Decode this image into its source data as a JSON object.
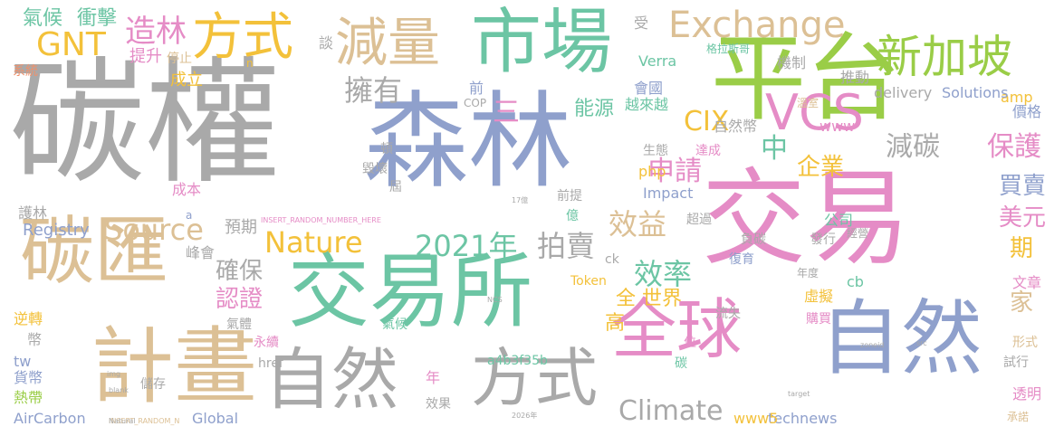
{
  "palette": {
    "gray": "#a9a9a9",
    "blue": "#8fa0cc",
    "green": "#6cc5a4",
    "pink": "#e58cc6",
    "tan": "#dcc095",
    "yellow": "#f3c13a",
    "lime": "#9acd47",
    "orange": "#f0916b"
  },
  "words": [
    {
      "text": "碳權",
      "size": 150,
      "color": "gray",
      "v": false
    },
    {
      "text": "森林",
      "size": 115,
      "color": "blue",
      "v": false
    },
    {
      "text": "交易",
      "size": 115,
      "color": "pink",
      "v": false
    },
    {
      "text": "平台",
      "size": 105,
      "color": "lime",
      "v": false
    },
    {
      "text": "市場",
      "size": 78,
      "color": "green",
      "v": false
    },
    {
      "text": "交易所",
      "size": 90,
      "color": "green",
      "v": false
    },
    {
      "text": "計畫",
      "size": 92,
      "color": "tan",
      "v": false
    },
    {
      "text": "碳匯",
      "size": 82,
      "color": "tan",
      "v": false
    },
    {
      "text": "自然",
      "size": 90,
      "color": "blue",
      "v": false
    },
    {
      "text": "全球",
      "size": 72,
      "color": "pink",
      "v": false
    },
    {
      "text": "自然",
      "size": 74,
      "color": "gray",
      "v": false
    },
    {
      "text": "方式",
      "size": 70,
      "color": "gray",
      "v": false
    },
    {
      "text": "減量",
      "size": 58,
      "color": "tan",
      "v": false
    },
    {
      "text": "方式",
      "size": 56,
      "color": "yellow",
      "v": false
    },
    {
      "text": "新加坡",
      "size": 50,
      "color": "lime",
      "v": false
    },
    {
      "text": "Exchange",
      "size": 40,
      "color": "tan",
      "v": false
    },
    {
      "text": "VCS",
      "size": 54,
      "color": "pink",
      "v": false
    },
    {
      "text": "GNT",
      "size": 36,
      "color": "yellow",
      "v": false
    },
    {
      "text": "造林",
      "size": 34,
      "color": "pink",
      "v": false
    },
    {
      "text": "氣候",
      "size": 22,
      "color": "green",
      "v": false
    },
    {
      "text": "衝擊",
      "size": 22,
      "color": "green",
      "v": false
    },
    {
      "text": "Source",
      "size": 32,
      "color": "tan",
      "v": false
    },
    {
      "text": "Nature",
      "size": 32,
      "color": "yellow",
      "v": false
    },
    {
      "text": "2021年",
      "size": 32,
      "color": "green",
      "v": false
    },
    {
      "text": "拍賣",
      "size": 32,
      "color": "gray",
      "v": false
    },
    {
      "text": "擁有",
      "size": 32,
      "color": "gray",
      "v": false
    },
    {
      "text": "確保",
      "size": 26,
      "color": "gray",
      "v": false
    },
    {
      "text": "認證",
      "size": 26,
      "color": "pink",
      "v": false
    },
    {
      "text": "效益",
      "size": 32,
      "color": "tan",
      "v": false
    },
    {
      "text": "效率",
      "size": 32,
      "color": "green",
      "v": false
    },
    {
      "text": "申請",
      "size": 30,
      "color": "pink",
      "v": false
    },
    {
      "text": "中",
      "size": 30,
      "color": "green",
      "v": false
    },
    {
      "text": "CIX",
      "size": 30,
      "color": "yellow",
      "v": false
    },
    {
      "text": "三",
      "size": 30,
      "color": "pink",
      "v": false
    },
    {
      "text": "能源",
      "size": 22,
      "color": "green",
      "v": false
    },
    {
      "text": "減碳",
      "size": 30,
      "color": "gray",
      "v": false
    },
    {
      "text": "保護",
      "size": 30,
      "color": "pink",
      "v": false
    },
    {
      "text": "企業",
      "size": 26,
      "color": "yellow",
      "v": false
    },
    {
      "text": "買賣",
      "size": 26,
      "color": "blue",
      "v": false
    },
    {
      "text": "美元",
      "size": 26,
      "color": "pink",
      "v": false
    },
    {
      "text": "期",
      "size": 26,
      "color": "yellow",
      "v": false
    },
    {
      "text": "家",
      "size": 26,
      "color": "tan",
      "v": false
    },
    {
      "text": "Climate",
      "size": 30,
      "color": "gray",
      "v": false
    },
    {
      "text": "全 世界",
      "size": 22,
      "color": "yellow",
      "v": false
    },
    {
      "text": "高",
      "size": 22,
      "color": "yellow",
      "v": false
    },
    {
      "text": "提升",
      "size": 18,
      "color": "pink",
      "v": false
    },
    {
      "text": "停止",
      "size": 14,
      "color": "tan",
      "v": false
    },
    {
      "text": "成立",
      "size": 18,
      "color": "yellow",
      "v": false
    },
    {
      "text": "談",
      "size": 16,
      "color": "gray",
      "v": false
    },
    {
      "text": "前",
      "size": 16,
      "color": "blue",
      "v": false
    },
    {
      "text": "受",
      "size": 16,
      "color": "gray",
      "v": false
    },
    {
      "text": "會國",
      "size": 16,
      "color": "blue",
      "v": false
    },
    {
      "text": "越來越",
      "size": 16,
      "color": "green",
      "v": false
    },
    {
      "text": "機制",
      "size": 16,
      "color": "gray",
      "v": false
    },
    {
      "text": "推動",
      "size": 16,
      "color": "gray",
      "v": false
    },
    {
      "text": "Verra",
      "size": 16,
      "color": "green",
      "v": false
    },
    {
      "text": "自然幣",
      "size": 16,
      "color": "gray",
      "v": false
    },
    {
      "text": "www",
      "size": 16,
      "color": "pink",
      "v": false
    },
    {
      "text": "amp",
      "size": 16,
      "color": "yellow",
      "v": false
    },
    {
      "text": "價格",
      "size": 16,
      "color": "blue",
      "v": false
    },
    {
      "text": "delivery",
      "size": 16,
      "color": "gray",
      "v": false
    },
    {
      "text": "Solutions",
      "size": 16,
      "color": "blue",
      "v": false
    },
    {
      "text": "格拉斯哥",
      "size": 12,
      "color": "green",
      "v": false
    },
    {
      "text": "溫室",
      "size": 12,
      "color": "tan",
      "v": false
    },
    {
      "text": "系統",
      "size": 14,
      "color": "orange",
      "v": false
    },
    {
      "text": "Registry",
      "size": 18,
      "color": "blue",
      "v": false
    },
    {
      "text": "護林",
      "size": 16,
      "color": "gray",
      "v": false
    },
    {
      "text": "預期",
      "size": 18,
      "color": "gray",
      "v": false
    },
    {
      "text": "成本",
      "size": 16,
      "color": "pink",
      "v": false
    },
    {
      "text": "峰會",
      "size": 16,
      "color": "gray",
      "v": false
    },
    {
      "text": "逆轉",
      "size": 16,
      "color": "yellow",
      "v": false
    },
    {
      "text": "幣",
      "size": 16,
      "color": "gray",
      "v": false
    },
    {
      "text": "tw",
      "size": 16,
      "color": "blue",
      "v": false
    },
    {
      "text": "貨幣",
      "size": 16,
      "color": "blue",
      "v": false
    },
    {
      "text": "熱帶",
      "size": 16,
      "color": "lime",
      "v": false
    },
    {
      "text": "AirCarbon",
      "size": 16,
      "color": "blue",
      "v": false
    },
    {
      "text": "Global",
      "size": 16,
      "color": "blue",
      "v": false
    },
    {
      "text": "technews",
      "size": 16,
      "color": "blue",
      "v": false
    },
    {
      "text": "www5",
      "size": 16,
      "color": "yellow",
      "v": false
    },
    {
      "text": "a4b3f35b",
      "size": 14,
      "color": "green",
      "v": false
    },
    {
      "text": "Token",
      "size": 14,
      "color": "yellow",
      "v": false
    },
    {
      "text": "ck",
      "size": 14,
      "color": "gray",
      "v": false
    },
    {
      "text": "cb",
      "size": 16,
      "color": "green",
      "v": false
    },
    {
      "text": "php",
      "size": 16,
      "color": "yellow",
      "v": false
    },
    {
      "text": "Impact",
      "size": 16,
      "color": "blue",
      "v": false
    },
    {
      "text": "生態",
      "size": 14,
      "color": "gray",
      "v": false
    },
    {
      "text": "達成",
      "size": 14,
      "color": "pink",
      "v": false
    },
    {
      "text": "公司",
      "size": 16,
      "color": "green",
      "v": false
    },
    {
      "text": "超過",
      "size": 14,
      "color": "gray",
      "v": false
    },
    {
      "text": "負碳",
      "size": 14,
      "color": "gray",
      "v": false
    },
    {
      "text": "經營",
      "size": 12,
      "color": "gray",
      "v": false
    },
    {
      "text": "發行",
      "size": 14,
      "color": "gray",
      "v": false
    },
    {
      "text": "復育",
      "size": 14,
      "color": "blue",
      "v": false
    },
    {
      "text": "年度",
      "size": 12,
      "color": "gray",
      "v": false
    },
    {
      "text": "虛擬",
      "size": 16,
      "color": "yellow",
      "v": false
    },
    {
      "text": "文章",
      "size": 16,
      "color": "pink",
      "v": false
    },
    {
      "text": "購買",
      "size": 14,
      "color": "pink",
      "v": false
    },
    {
      "text": "流失",
      "size": 14,
      "color": "gray",
      "v": false
    },
    {
      "text": "形式",
      "size": 14,
      "color": "tan",
      "v": false
    },
    {
      "text": "試行",
      "size": 14,
      "color": "gray",
      "v": false
    },
    {
      "text": "透明",
      "size": 16,
      "color": "pink",
      "v": false
    },
    {
      "text": "承諾",
      "size": 12,
      "color": "tan",
      "v": false
    },
    {
      "text": "碳",
      "size": 14,
      "color": "green",
      "v": false
    },
    {
      "text": "位",
      "size": 14,
      "color": "pink",
      "v": false
    },
    {
      "text": "年",
      "size": 16,
      "color": "pink",
      "v": false
    },
    {
      "text": "效果",
      "size": 14,
      "color": "gray",
      "v": false
    },
    {
      "text": "億",
      "size": 14,
      "color": "green",
      "v": false
    },
    {
      "text": "前提",
      "size": 14,
      "color": "gray",
      "v": false
    },
    {
      "text": "氣體",
      "size": 14,
      "color": "gray",
      "v": false
    },
    {
      "text": "永續",
      "size": 14,
      "color": "pink",
      "v": false
    },
    {
      "text": "氣候",
      "size": 14,
      "color": "green",
      "v": false
    },
    {
      "text": "href",
      "size": 14,
      "color": "gray",
      "v": false
    },
    {
      "text": "儲存",
      "size": 14,
      "color": "gray",
      "v": false
    },
    {
      "text": "毀壞",
      "size": 14,
      "color": "gray",
      "v": false
    },
    {
      "text": "頓",
      "size": 14,
      "color": "gray",
      "v": false
    },
    {
      "text": "屆",
      "size": 14,
      "color": "gray",
      "v": false
    },
    {
      "text": "COP",
      "size": 12,
      "color": "gray",
      "v": false
    },
    {
      "text": "a",
      "size": 12,
      "color": "blue",
      "v": false
    },
    {
      "text": "n",
      "size": 12,
      "color": "yellow",
      "v": false
    },
    {
      "text": "INSERT_RANDOM_NUMBER_HERE",
      "size": 8,
      "color": "pink",
      "v": false
    },
    {
      "text": "INSERT_RANDOM_N",
      "size": 8,
      "color": "tan",
      "v": false
    },
    {
      "text": "Natural",
      "size": 8,
      "color": "gray",
      "v": false
    },
    {
      "text": "target",
      "size": 8,
      "color": "gray",
      "v": false
    },
    {
      "text": "zoneid",
      "size": 8,
      "color": "gray",
      "v": false
    },
    {
      "text": "img",
      "size": 8,
      "color": "gray",
      "v": false
    },
    {
      "text": "blank",
      "size": 8,
      "color": "gray",
      "v": false
    },
    {
      "text": "NCS",
      "size": 8,
      "color": "gray",
      "v": false
    },
    {
      "text": "2026年",
      "size": 8,
      "color": "gray",
      "v": false
    },
    {
      "text": "17億",
      "size": 8,
      "color": "gray",
      "v": false
    },
    {
      "text": "src",
      "size": 8,
      "color": "gray",
      "v": false
    }
  ]
}
